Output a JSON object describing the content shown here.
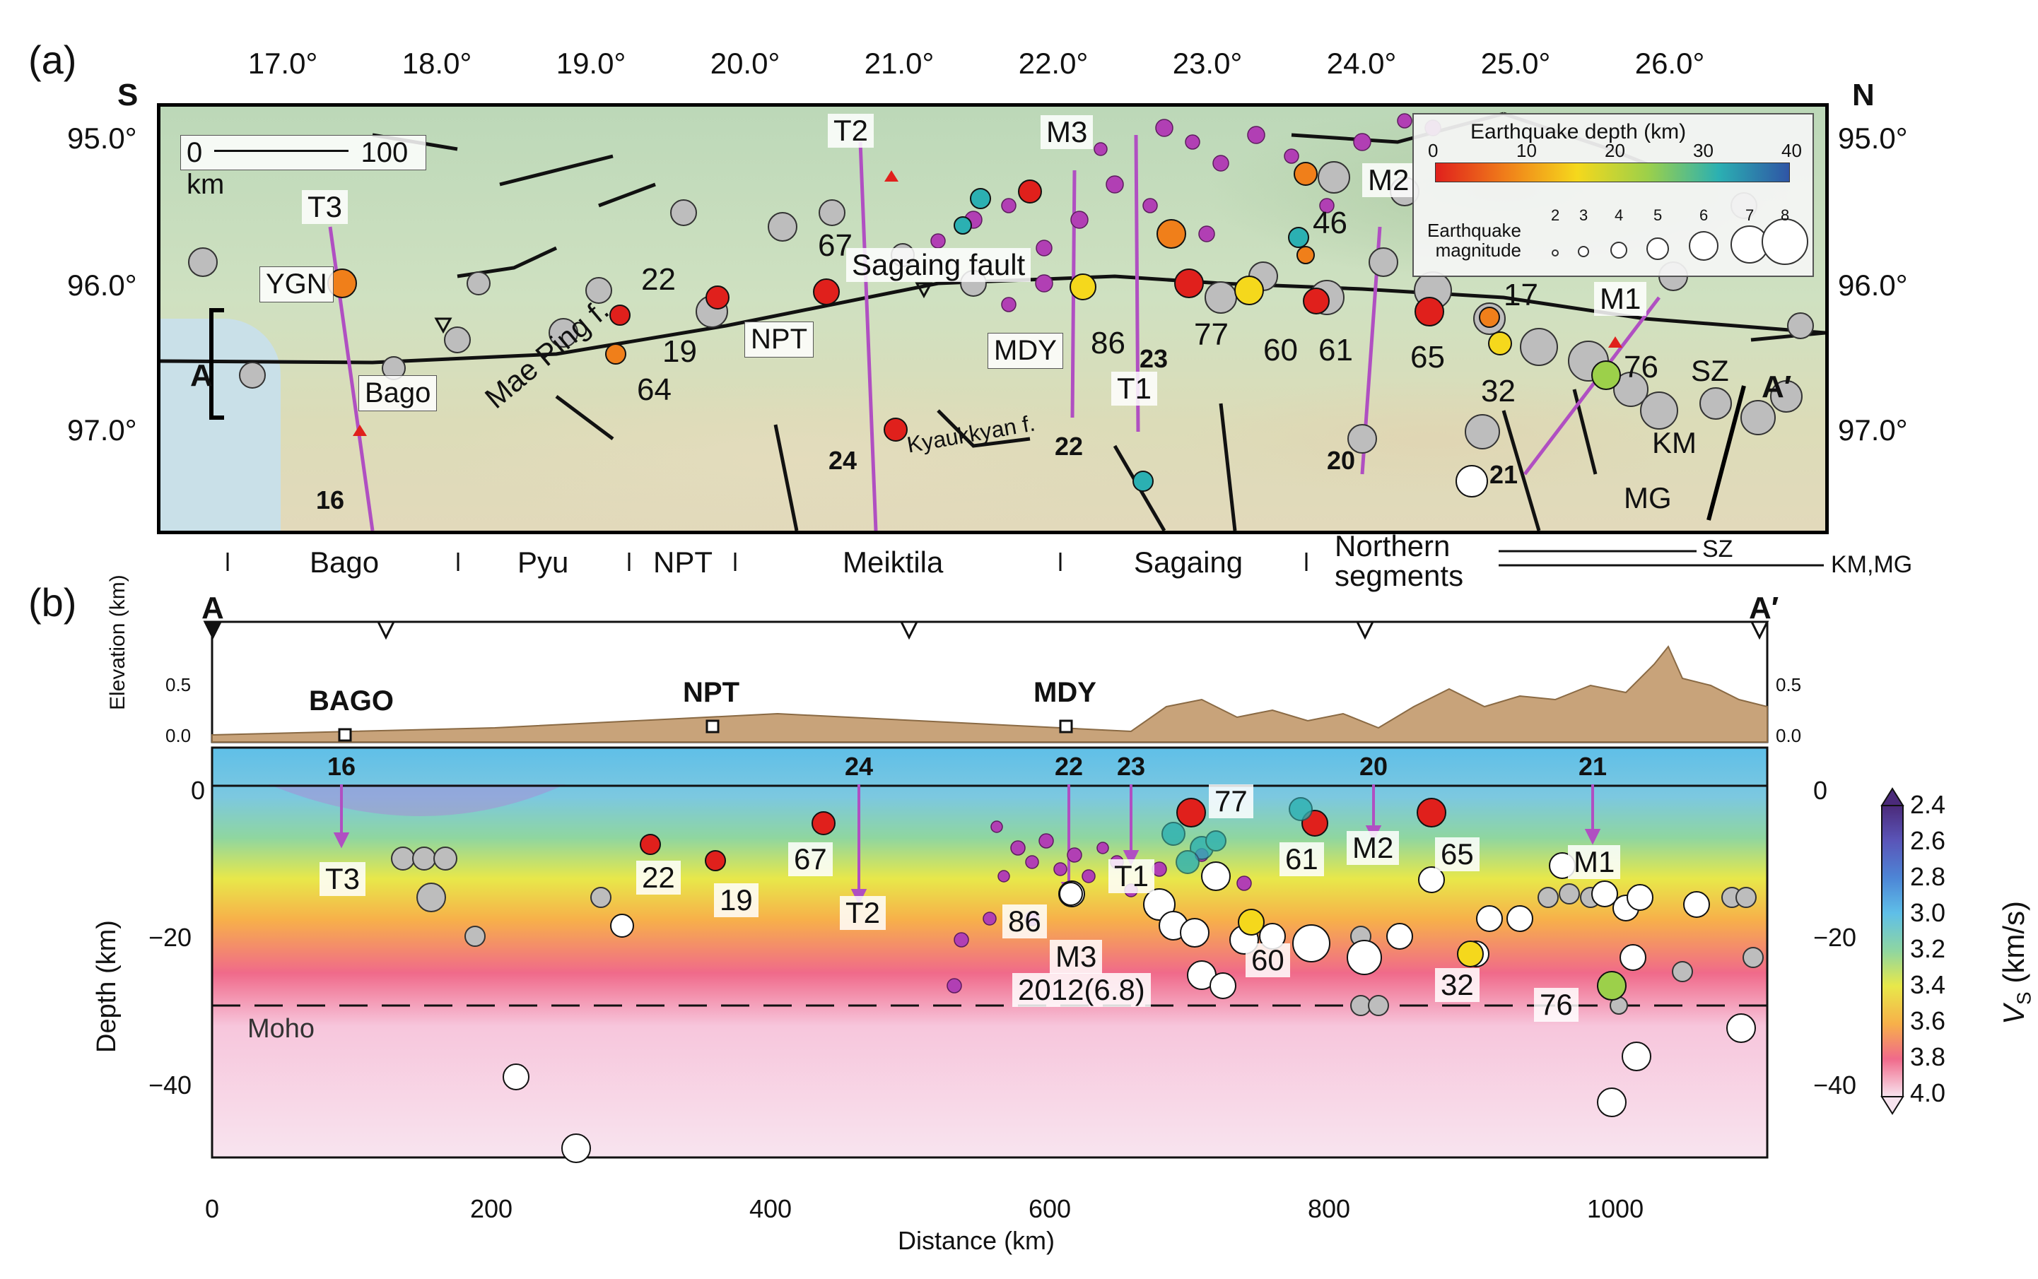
{
  "panel_a": {
    "label": "(a)",
    "dir_left": "S",
    "dir_right": "N",
    "lon_ticks": [
      "17.0°",
      "18.0°",
      "19.0°",
      "20.0°",
      "21.0°",
      "22.0°",
      "23.0°",
      "24.0°",
      "25.0°",
      "26.0°"
    ],
    "lat_ticks": [
      "95.0°",
      "96.0°",
      "97.0°"
    ],
    "scale_bar": {
      "zero": "0",
      "label": "100 km"
    },
    "cities": [
      "YGN",
      "Bago",
      "NPT",
      "MDY"
    ],
    "fault_labels": {
      "sagaing": "Sagaing fault",
      "mae_ping": "Mae Ping f.",
      "kyaukkyan": "Kyaukkyan f.",
      "sz": "SZ",
      "km": "KM",
      "mg": "MG"
    },
    "profile_labels": [
      "T3",
      "T2",
      "M3",
      "M2",
      "T1",
      "M1"
    ],
    "profile_numbers": [
      "16",
      "24",
      "22",
      "23",
      "20",
      "21"
    ],
    "event_labels": [
      "67",
      "22",
      "19",
      "64",
      "86",
      "77",
      "60",
      "61",
      "65",
      "46",
      "17",
      "32",
      "76"
    ],
    "section_endpoints": {
      "start": "A",
      "end": "A′"
    },
    "legend": {
      "depth_title": "Earthquake depth (km)",
      "depth_ticks": [
        "0",
        "10",
        "20",
        "30",
        "40"
      ],
      "mag_title_1": "Earthquake",
      "mag_title_2": "magnitude",
      "mag_ticks": [
        "2",
        "3",
        "4",
        "5",
        "6",
        "7",
        "8"
      ],
      "depth_colors": [
        "#e0201c",
        "#f07f1a",
        "#f5d81c",
        "#9cd04a",
        "#2bb0b2",
        "#2f55a5"
      ]
    }
  },
  "segments": {
    "bago": "Bago",
    "pyu": "Pyu",
    "npt": "NPT",
    "meiktila": "Meiktila",
    "sagaing": "Sagaing",
    "northern_1": "Northern",
    "northern_2": "segments",
    "sz": "SZ",
    "kmmg": "KM,MG"
  },
  "panel_b": {
    "label": "(b)",
    "start": "A",
    "end": "A′",
    "elev_axis": "Elevation (km)",
    "elev_ticks": [
      "0.5",
      "0.0"
    ],
    "towns": [
      "BAGO",
      "NPT",
      "MDY"
    ],
    "depth_axis": "Depth (km)",
    "depth_ticks": [
      "0",
      "−20",
      "−40"
    ],
    "distance_axis": "Distance (km)",
    "distance_ticks": [
      "0",
      "200",
      "400",
      "600",
      "800",
      "1000"
    ],
    "moho": "Moho",
    "profile_numbers": [
      "16",
      "24",
      "22",
      "23",
      "20",
      "21"
    ],
    "profile_labels": [
      "T3",
      "T2",
      "M3",
      "T1",
      "M2",
      "M1"
    ],
    "event_labels": [
      "22",
      "19",
      "67",
      "86",
      "77",
      "61",
      "65",
      "60",
      "32",
      "76"
    ],
    "event_2012": "2012(6.8)",
    "colorbar": {
      "title": "V",
      "title_sub": "S",
      "title_unit": "(km/s)",
      "ticks": [
        "2.4",
        "2.6",
        "2.8",
        "3.0",
        "3.2",
        "3.4",
        "3.6",
        "3.8",
        "4.0"
      ],
      "colors": [
        "#4b2a7a",
        "#5a55b8",
        "#4d86d6",
        "#5fbfe8",
        "#8fd6a0",
        "#e8e84a",
        "#f7b04a",
        "#f06a8a",
        "#f7c6dc",
        "#f8e4ef"
      ]
    }
  }
}
